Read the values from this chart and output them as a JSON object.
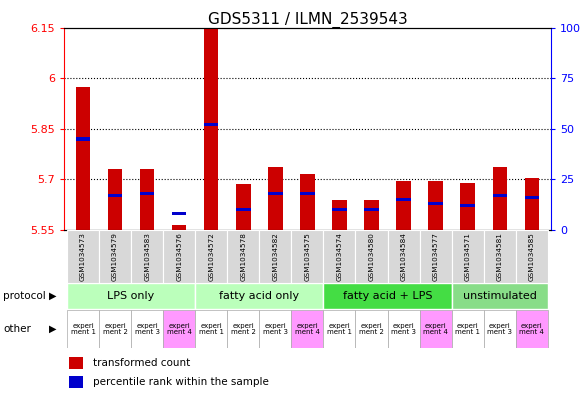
{
  "title": "GDS5311 / ILMN_2539543",
  "samples": [
    "GSM1034573",
    "GSM1034579",
    "GSM1034583",
    "GSM1034576",
    "GSM1034572",
    "GSM1034578",
    "GSM1034582",
    "GSM1034575",
    "GSM1034574",
    "GSM1034580",
    "GSM1034584",
    "GSM1034577",
    "GSM1034571",
    "GSM1034581",
    "GSM1034585"
  ],
  "red_values": [
    5.975,
    5.73,
    5.73,
    5.565,
    6.15,
    5.685,
    5.735,
    5.715,
    5.64,
    5.64,
    5.695,
    5.695,
    5.69,
    5.735,
    5.705
  ],
  "blue_pct": [
    45,
    17,
    18,
    8,
    52,
    10,
    18,
    18,
    10,
    10,
    15,
    13,
    12,
    17,
    16
  ],
  "ylim_left": [
    5.55,
    6.15
  ],
  "ylim_right": [
    0,
    100
  ],
  "yticks_left": [
    5.55,
    5.7,
    5.85,
    6.0,
    6.15
  ],
  "ytick_labels_left": [
    "5.55",
    "5.7",
    "5.85",
    "6",
    "6.15"
  ],
  "yticks_right": [
    0,
    25,
    50,
    75,
    100
  ],
  "ytick_labels_right": [
    "0",
    "25",
    "50",
    "75",
    "100%"
  ],
  "groups": [
    {
      "label": "LPS only",
      "start": 0,
      "end": 4,
      "color": "#bbffbb"
    },
    {
      "label": "fatty acid only",
      "start": 4,
      "end": 8,
      "color": "#bbffbb"
    },
    {
      "label": "fatty acid + LPS",
      "start": 8,
      "end": 12,
      "color": "#44dd44"
    },
    {
      "label": "unstimulated",
      "start": 12,
      "end": 15,
      "color": "#88dd88"
    }
  ],
  "other_labels": [
    "experi\nment 1",
    "experi\nment 2",
    "experi\nment 3",
    "experi\nment 4",
    "experi\nment 1",
    "experi\nment 2",
    "experi\nment 3",
    "experi\nment 4",
    "experi\nment 1",
    "experi\nment 2",
    "experi\nment 3",
    "experi\nment 4",
    "experi\nment 1",
    "experi\nment 3",
    "experi\nment 4"
  ],
  "other_colors": [
    "#ffffff",
    "#ffffff",
    "#ffffff",
    "#ff99ff",
    "#ffffff",
    "#ffffff",
    "#ffffff",
    "#ff99ff",
    "#ffffff",
    "#ffffff",
    "#ffffff",
    "#ff99ff",
    "#ffffff",
    "#ffffff",
    "#ff99ff"
  ],
  "bar_color": "#cc0000",
  "blue_color": "#0000cc",
  "bar_width": 0.45,
  "title_fontsize": 11,
  "xtick_fontsize": 5.5,
  "legend_fontsize": 7.5,
  "group_fontsize": 8,
  "other_fontsize": 5,
  "label_fontsize": 7.5
}
